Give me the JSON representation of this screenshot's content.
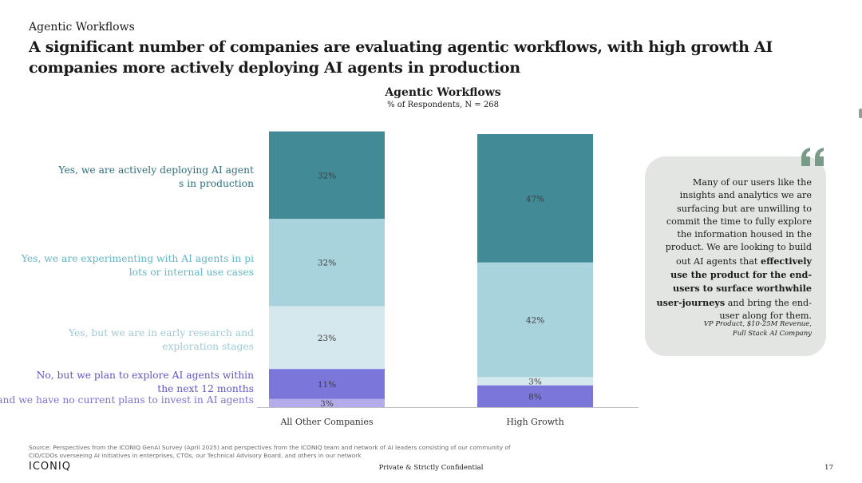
{
  "header": {
    "kicker": "Agentic Workflows",
    "headline": "A significant number of companies are evaluating agentic workflows, with high growth AI companies more actively deploying AI agents in production"
  },
  "chart_data": {
    "type": "bar",
    "stacked": true,
    "title": "Agentic Workflows",
    "subtitle": "% of Respondents, N = 268",
    "categories": [
      "All Other Companies",
      "High Growth"
    ],
    "series": [
      {
        "name": "No, and we have no current plans to invest in AI agents",
        "values": [
          3,
          0
        ],
        "labels": [
          "3%",
          ""
        ],
        "color": "#b4acea",
        "label_color": "#7d71d6"
      },
      {
        "name": "No, but we plan to explore AI agents within the next 12 months",
        "values": [
          11,
          8
        ],
        "labels": [
          "11%",
          "8%"
        ],
        "color": "#7b76d9",
        "label_color": "#5e55c8"
      },
      {
        "name": "Yes, but we are in early research and exploration stages",
        "values": [
          23,
          3
        ],
        "labels": [
          "23%",
          "3%"
        ],
        "color": "#d5e8ed",
        "label_color": "#9fcad4"
      },
      {
        "name": "Yes, we are experimenting with AI agents in pilots or internal use cases",
        "values": [
          32,
          42
        ],
        "labels": [
          "32%",
          "42%"
        ],
        "color": "#a9d3dc",
        "label_color": "#63b7c6"
      },
      {
        "name": "Yes, we are actively deploying AI agents in production",
        "values": [
          32,
          47
        ],
        "labels": [
          "32%",
          "47%"
        ],
        "color": "#438a97",
        "label_color": "#2f6f7c"
      }
    ],
    "ylim": [
      0,
      100
    ],
    "xlabel": "",
    "ylabel": "",
    "grid": false
  },
  "quote": {
    "text_before": "Many of our users like the insights and analytics we are surfacing but are unwilling to commit the time to fully explore the information housed in the product. We are looking to build out AI agents that ",
    "text_bold": "effectively use the product for the end-users to surface worthwhile user-journeys",
    "text_after": " and bring the end-user along for them.",
    "attribution_line1": "VP Product, $10-25M Revenue,",
    "attribution_line2": "Full Stack AI Company",
    "icon": "quote-marks-icon",
    "icon_color": "#7a9b88"
  },
  "footer": {
    "source": "Source: Perspectives from the ICONIQ GenAI Survey (April 2025) and perspectives from the ICONIQ team and network of AI leaders consisting of our community of CIO/CDOs overseeing AI initiatives in enterprises, CTOs, our Technical Advisory Board, and others in our network",
    "logo": "ICONIQ",
    "confidential": "Private & Strictly Confidential",
    "page": "17"
  }
}
